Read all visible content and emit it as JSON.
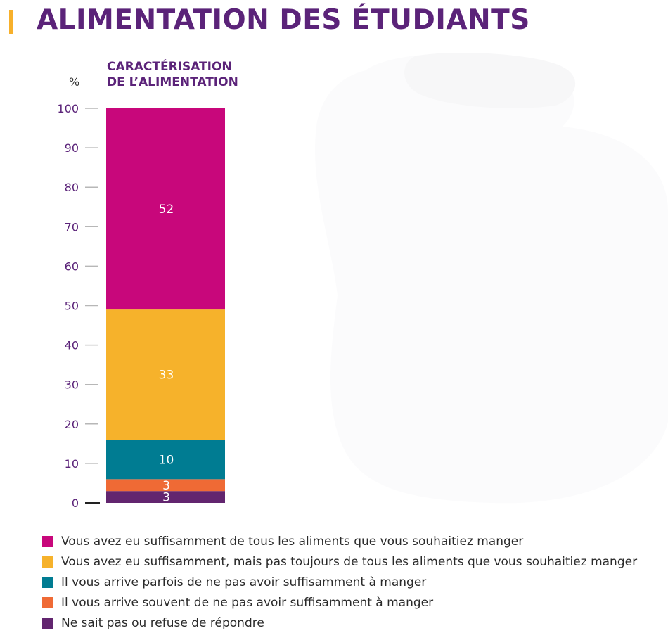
{
  "header": {
    "title": "ALIMENTATION DES ÉTUDIANTS",
    "accent_color": "#f7b02b",
    "title_color": "#5b2379"
  },
  "chart_data": {
    "type": "bar",
    "stacked": true,
    "title": "CARACTÉRISATION\nDE L’ALIMENTATION",
    "ylabel": "%",
    "ylim": [
      0,
      100
    ],
    "yticks": [
      0,
      10,
      20,
      30,
      40,
      50,
      60,
      70,
      80,
      90,
      100
    ],
    "categories": [
      ""
    ],
    "series": [
      {
        "name": "Ne sait pas ou refuse de répondre",
        "values": [
          3
        ],
        "color": "#62256f"
      },
      {
        "name": "Il vous arrive souvent de ne pas avoir suffisamment à manger",
        "values": [
          3
        ],
        "color": "#ef6a35"
      },
      {
        "name": "Il vous arrive parfois de ne pas avoir suffisamment à manger",
        "values": [
          10
        ],
        "color": "#007c92"
      },
      {
        "name": "Vous avez eu suffisamment, mais pas toujours de tous les aliments que vous souhaitiez manger",
        "values": [
          33
        ],
        "color": "#f6b22b"
      },
      {
        "name": "Vous avez eu suffisamment de tous les aliments que vous souhaitiez manger",
        "values": [
          52
        ],
        "color": "#c8077b"
      }
    ],
    "grid": false,
    "legend": "bottom"
  },
  "legend": {
    "items": [
      {
        "label": "Vous avez eu suffisamment de tous les aliments que vous souhaitiez manger",
        "color": "#c8077b"
      },
      {
        "label": "Vous avez eu suffisamment, mais pas toujours de tous les aliments que vous souhaitiez manger",
        "color": "#f6b22b"
      },
      {
        "label": "Il vous arrive parfois de ne pas avoir suffisamment à manger",
        "color": "#007c92"
      },
      {
        "label": "Il vous arrive souvent de ne pas avoir suffisamment à manger",
        "color": "#ef6a35"
      },
      {
        "label": "Ne sait pas ou refuse de répondre",
        "color": "#62256f"
      }
    ]
  }
}
